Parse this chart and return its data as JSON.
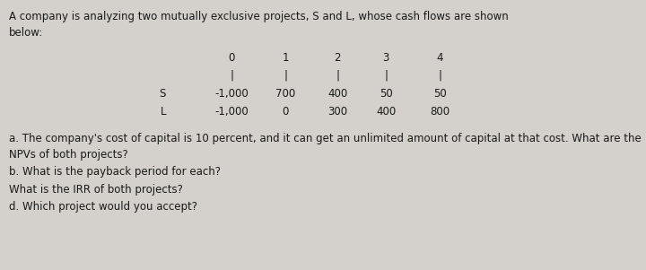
{
  "bg_color": "#d4d0cb",
  "text_color": "#1a1a1a",
  "title_line1": "A company is analyzing two mutually exclusive projects, S and L, whose cash flows are shown",
  "title_line2": "below:",
  "period_labels": [
    "0",
    "1",
    "2",
    "3",
    "4"
  ],
  "tick_char": "|",
  "row_s_label": "S",
  "row_l_label": "L",
  "s_values": [
    "-1,000",
    "700",
    "400",
    "50",
    "50"
  ],
  "l_values": [
    "-1,000",
    "0",
    "300",
    "400",
    "800"
  ],
  "question_a": "a. The company's cost of capital is 10 percent, and it can get an unlimited amount of capital at that cost. What are the\nNPVs of both projects?",
  "question_b": "b. What is the payback period for each?",
  "question_c": "What is the IRR of both projects?",
  "question_d": "d. Which project would you accept?",
  "font_size": 8.5
}
